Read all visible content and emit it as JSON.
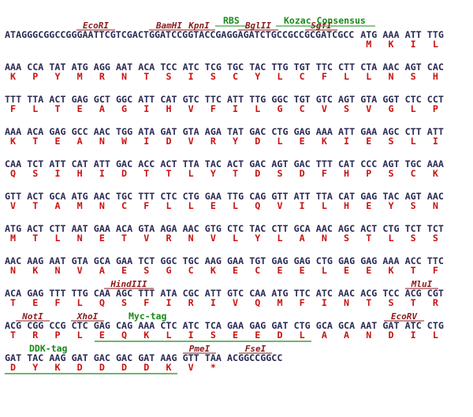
{
  "lines": [
    {
      "prefix": "ATAGGGCGGCCGGGAATTCGTCGACTGGATCCGGTACCGAGGAGATCTGCCGCCGCGATCGCC",
      "codons": [
        "ATG",
        "AAA",
        "ATT",
        "TTG"
      ],
      "protein": [
        "M",
        "K",
        "I",
        "L"
      ],
      "enzymes": [
        "EcoRI",
        "BamHI",
        "KpnI",
        "BglII",
        "SgfI"
      ],
      "features": [
        "RBS",
        "Kozac Consensus"
      ]
    },
    {
      "codons": [
        "AAA",
        "CCA",
        "TAT",
        "ATG",
        "AGG",
        "AAT",
        "ACA",
        "TCC",
        "ATC",
        "TCG",
        "TGC",
        "TAC",
        "TTG",
        "TGT",
        "TTC",
        "CTT",
        "CTA",
        "AAC",
        "AGT",
        "CAC"
      ],
      "protein": [
        "K",
        "P",
        "Y",
        "M",
        "R",
        "N",
        "T",
        "S",
        "I",
        "S",
        "C",
        "Y",
        "L",
        "C",
        "F",
        "L",
        "L",
        "N",
        "S",
        "H"
      ]
    },
    {
      "codons": [
        "TTT",
        "TTA",
        "ACT",
        "GAG",
        "GCT",
        "GGC",
        "ATT",
        "CAT",
        "GTC",
        "TTC",
        "ATT",
        "TTG",
        "GGC",
        "TGT",
        "GTC",
        "AGT",
        "GTA",
        "GGT",
        "CTC",
        "CCT"
      ],
      "protein": [
        "F",
        "L",
        "T",
        "E",
        "A",
        "G",
        "I",
        "H",
        "V",
        "F",
        "I",
        "L",
        "G",
        "C",
        "V",
        "S",
        "V",
        "G",
        "L",
        "P"
      ]
    },
    {
      "codons": [
        "AAA",
        "ACA",
        "GAG",
        "GCC",
        "AAC",
        "TGG",
        "ATA",
        "GAT",
        "GTA",
        "AGA",
        "TAT",
        "GAC",
        "CTG",
        "GAG",
        "AAA",
        "ATT",
        "GAA",
        "AGC",
        "CTT",
        "ATT"
      ],
      "protein": [
        "K",
        "T",
        "E",
        "A",
        "N",
        "W",
        "I",
        "D",
        "V",
        "R",
        "Y",
        "D",
        "L",
        "E",
        "K",
        "I",
        "E",
        "S",
        "L",
        "I"
      ]
    },
    {
      "codons": [
        "CAA",
        "TCT",
        "ATT",
        "CAT",
        "ATT",
        "GAC",
        "ACC",
        "ACT",
        "TTA",
        "TAC",
        "ACT",
        "GAC",
        "AGT",
        "GAC",
        "TTT",
        "CAT",
        "CCC",
        "AGT",
        "TGC",
        "AAA"
      ],
      "protein": [
        "Q",
        "S",
        "I",
        "H",
        "I",
        "D",
        "T",
        "T",
        "L",
        "Y",
        "T",
        "D",
        "S",
        "D",
        "F",
        "H",
        "P",
        "S",
        "C",
        "K"
      ]
    },
    {
      "codons": [
        "GTT",
        "ACT",
        "GCA",
        "ATG",
        "AAC",
        "TGC",
        "TTT",
        "CTC",
        "CTG",
        "GAA",
        "TTG",
        "CAG",
        "GTT",
        "ATT",
        "TTA",
        "CAT",
        "GAG",
        "TAC",
        "AGT",
        "AAC"
      ],
      "protein": [
        "V",
        "T",
        "A",
        "M",
        "N",
        "C",
        "F",
        "L",
        "L",
        "E",
        "L",
        "Q",
        "V",
        "I",
        "L",
        "H",
        "E",
        "Y",
        "S",
        "N"
      ]
    },
    {
      "codons": [
        "ATG",
        "ACT",
        "CTT",
        "AAT",
        "GAA",
        "ACA",
        "GTA",
        "AGA",
        "AAC",
        "GTG",
        "CTC",
        "TAC",
        "CTT",
        "GCA",
        "AAC",
        "AGC",
        "ACT",
        "CTG",
        "TCT",
        "TCT"
      ],
      "protein": [
        "M",
        "T",
        "L",
        "N",
        "E",
        "T",
        "V",
        "R",
        "N",
        "V",
        "L",
        "Y",
        "L",
        "A",
        "N",
        "S",
        "T",
        "L",
        "S",
        "S"
      ]
    },
    {
      "codons": [
        "AAC",
        "AAG",
        "AAT",
        "GTA",
        "GCA",
        "GAA",
        "TCT",
        "GGC",
        "TGC",
        "AAG",
        "GAA",
        "TGT",
        "GAG",
        "GAG",
        "CTG",
        "GAG",
        "GAG",
        "AAA",
        "ACC",
        "TTC"
      ],
      "protein": [
        "N",
        "K",
        "N",
        "V",
        "A",
        "E",
        "S",
        "G",
        "C",
        "K",
        "E",
        "C",
        "E",
        "E",
        "L",
        "E",
        "E",
        "K",
        "T",
        "F"
      ]
    },
    {
      "codons": [
        "ACA",
        "GAG",
        "TTT",
        "TTG",
        "CAA",
        "AGC",
        "TTT",
        "ATA",
        "CGC",
        "ATT",
        "GTC",
        "CAA",
        "ATG",
        "TTC",
        "ATC",
        "AAC",
        "ACG",
        "TCC",
        "ACG",
        "CGT"
      ],
      "protein": [
        "T",
        "E",
        "F",
        "L",
        "Q",
        "S",
        "F",
        "I",
        "R",
        "I",
        "V",
        "Q",
        "M",
        "F",
        "I",
        "N",
        "T",
        "S",
        "T",
        "R"
      ],
      "enzymes": [
        "HindIII",
        "MluI"
      ]
    },
    {
      "codons": [
        "ACG",
        "CGG",
        "CCG",
        "CTC",
        "GAG",
        "CAG",
        "AAA",
        "CTC",
        "ATC",
        "TCA",
        "GAA",
        "GAG",
        "GAT",
        "CTG",
        "GCA",
        "GCA",
        "AAT",
        "GAT",
        "ATC",
        "CTG"
      ],
      "protein": [
        "T",
        "R",
        "P",
        "L",
        "E",
        "Q",
        "K",
        "L",
        "I",
        "S",
        "E",
        "E",
        "D",
        "L",
        "A",
        "A",
        "N",
        "D",
        "I",
        "L"
      ],
      "enzymes": [
        "NotI",
        "XhoI",
        "EcoRV"
      ],
      "features": [
        "Myc-tag"
      ]
    },
    {
      "codons": [
        "GAT",
        "TAC",
        "AAG",
        "GAT",
        "GAC",
        "GAC",
        "GAT",
        "AAG",
        "GTT",
        "TAA"
      ],
      "suffix": "ACGGCCGGCC",
      "protein": [
        "D",
        "Y",
        "K",
        "D",
        "D",
        "D",
        "D",
        "K",
        "V",
        "*"
      ],
      "enzymes": [
        "PmeI",
        "FseI"
      ],
      "features": [
        "DDK-tag"
      ]
    }
  ],
  "colors": {
    "dna": "#2a2a55",
    "protein": "#cc1111",
    "enzyme": "#8b1a1a",
    "feature": "#1a8a1a"
  }
}
